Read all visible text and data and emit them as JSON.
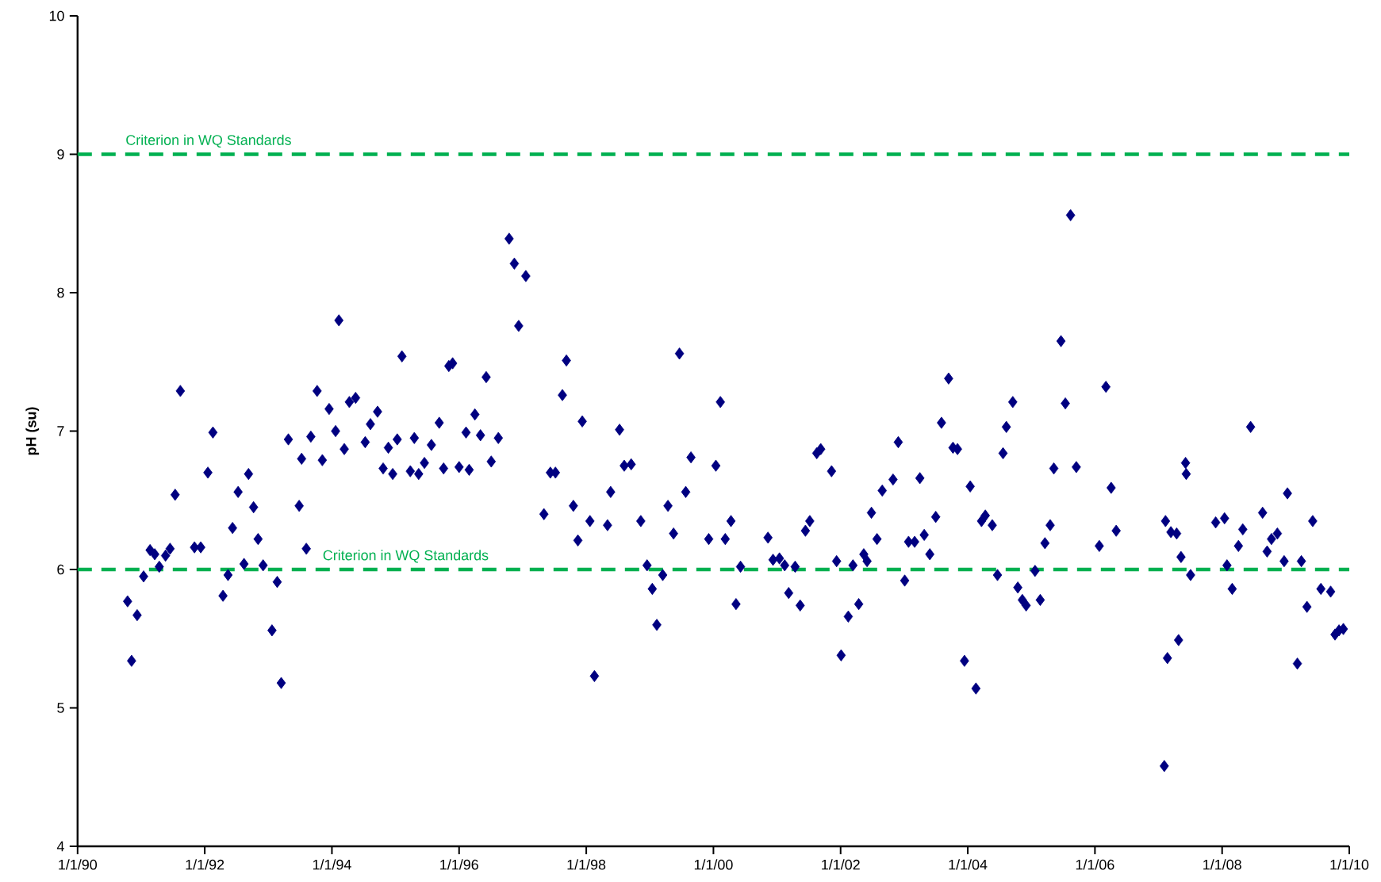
{
  "chart_data": {
    "type": "scatter",
    "ylabel": "**pH (su)**",
    "color": "#000080",
    "marker": "diamond",
    "x": [
      "1990-10-15",
      "1990-11-07",
      "1990-12-09",
      "1991-01-15",
      "1991-02-21",
      "1991-03-20",
      "1991-04-15",
      "1991-05-21",
      "1991-06-16",
      "1991-07-15",
      "1991-08-14",
      "1991-11-03",
      "1991-12-09",
      "1992-01-19",
      "1992-02-17",
      "1992-04-15",
      "1992-05-14",
      "1992-06-09",
      "1992-07-11",
      "1992-08-14",
      "1992-09-09",
      "1992-10-08",
      "1992-11-03",
      "1992-12-02",
      "1993-01-22",
      "1993-02-21",
      "1993-03-16",
      "1993-04-26",
      "1993-06-27",
      "1993-07-11",
      "1993-08-07",
      "1993-09-02",
      "1993-10-08",
      "1993-11-07",
      "1993-12-16",
      "1994-01-22",
      "1994-02-10",
      "1994-03-13",
      "1994-04-11",
      "1994-05-17",
      "1994-07-11",
      "1994-08-10",
      "1994-09-20",
      "1994-10-22",
      "1994-11-21",
      "1994-12-16",
      "1995-01-11",
      "1995-02-07",
      "1995-03-27",
      "1995-04-19",
      "1995-05-14",
      "1995-06-16",
      "1995-07-26",
      "1995-09-09",
      "1995-10-04",
      "1995-11-03",
      "1995-11-25",
      "1996-01-01",
      "1996-02-10",
      "1996-02-28",
      "1996-04-01",
      "1996-05-03",
      "1996-06-05",
      "1996-07-04",
      "1996-08-14",
      "1996-10-15",
      "1996-11-14",
      "1996-12-09",
      "1997-01-19",
      "1997-05-03",
      "1997-06-09",
      "1997-07-08",
      "1997-08-17",
      "1997-09-09",
      "1997-10-19",
      "1997-11-14",
      "1997-12-09",
      "1998-01-22",
      "1998-02-17",
      "1998-05-03",
      "1998-05-21",
      "1998-07-11",
      "1998-08-07",
      "1998-09-16",
      "1998-11-10",
      "1998-12-16",
      "1999-01-15",
      "1999-02-10",
      "1999-03-16",
      "1999-04-15",
      "1999-05-17",
      "1999-06-20",
      "1999-07-26",
      "1999-08-25",
      "1999-12-05",
      "2000-01-15",
      "2000-02-10",
      "2000-03-09",
      "2000-04-11",
      "2000-05-10",
      "2000-06-05",
      "2000-11-10",
      "2000-12-09",
      "2001-01-15",
      "2001-02-14",
      "2001-03-09",
      "2001-04-15",
      "2001-05-14",
      "2001-06-13",
      "2001-07-08",
      "2001-08-17",
      "2001-09-09",
      "2001-11-10",
      "2001-12-09",
      "2002-01-04",
      "2002-02-14",
      "2002-03-13",
      "2002-04-15",
      "2002-05-14",
      "2002-06-02",
      "2002-06-27",
      "2002-07-29",
      "2002-08-28",
      "2002-10-29",
      "2002-11-28",
      "2003-01-04",
      "2003-01-26",
      "2003-03-02",
      "2003-04-01",
      "2003-04-26",
      "2003-05-28",
      "2003-07-01",
      "2003-08-03",
      "2003-09-13",
      "2003-10-08",
      "2003-11-03",
      "2003-12-13",
      "2004-01-15",
      "2004-02-17",
      "2004-03-20",
      "2004-04-11",
      "2004-05-21",
      "2004-06-20",
      "2004-07-22",
      "2004-08-10",
      "2004-09-16",
      "2004-10-15",
      "2004-11-10",
      "2004-12-02",
      "2005-01-22",
      "2005-02-21",
      "2005-03-20",
      "2005-04-19",
      "2005-05-10",
      "2005-06-20",
      "2005-07-15",
      "2005-08-14",
      "2005-09-16",
      "2006-01-26",
      "2006-03-05",
      "2006-04-04",
      "2006-05-03",
      "2007-02-03",
      "2007-02-10",
      "2007-02-21",
      "2007-03-13",
      "2007-04-15",
      "2007-04-26",
      "2007-05-10",
      "2007-06-05",
      "2007-06-09",
      "2007-07-04",
      "2007-11-25",
      "2008-01-15",
      "2008-01-29",
      "2008-02-28",
      "2008-04-04",
      "2008-04-29",
      "2008-06-13",
      "2008-08-21",
      "2008-09-16",
      "2008-10-11",
      "2008-11-14",
      "2008-12-23",
      "2009-01-11",
      "2009-03-09",
      "2009-04-01",
      "2009-05-03",
      "2009-06-05",
      "2009-07-22",
      "2009-09-16",
      "2009-10-11",
      "2009-11-03",
      "2009-11-28"
    ],
    "values": [
      5.77,
      5.34,
      5.67,
      5.95,
      6.14,
      6.11,
      6.02,
      6.1,
      6.15,
      6.54,
      7.29,
      6.16,
      6.16,
      6.7,
      6.99,
      5.81,
      5.96,
      6.3,
      6.56,
      6.04,
      6.69,
      6.45,
      6.22,
      6.03,
      5.56,
      5.91,
      5.18,
      6.94,
      6.46,
      6.8,
      6.15,
      6.96,
      7.29,
      6.79,
      7.16,
      7.0,
      7.8,
      6.87,
      7.21,
      7.24,
      6.92,
      7.05,
      7.14,
      6.73,
      6.88,
      6.69,
      6.94,
      7.54,
      6.71,
      6.95,
      6.69,
      6.77,
      6.9,
      7.06,
      6.73,
      7.47,
      7.49,
      6.74,
      6.99,
      6.72,
      7.12,
      6.97,
      7.39,
      6.78,
      6.95,
      8.39,
      8.21,
      7.76,
      8.12,
      6.4,
      6.7,
      6.7,
      7.26,
      7.51,
      6.46,
      6.21,
      7.07,
      6.35,
      5.23,
      6.32,
      6.56,
      7.01,
      6.75,
      6.76,
      6.35,
      6.03,
      5.86,
      5.6,
      5.96,
      6.46,
      6.26,
      7.56,
      6.56,
      6.81,
      6.22,
      6.75,
      7.21,
      6.22,
      6.35,
      5.75,
      6.02,
      6.23,
      6.07,
      6.08,
      6.03,
      5.83,
      6.02,
      5.74,
      6.28,
      6.35,
      6.84,
      6.87,
      6.71,
      6.06,
      5.38,
      5.66,
      6.03,
      5.75,
      6.11,
      6.06,
      6.41,
      6.22,
      6.57,
      6.65,
      6.92,
      5.92,
      6.2,
      6.2,
      6.66,
      6.25,
      6.11,
      6.38,
      7.06,
      7.38,
      6.88,
      6.87,
      5.34,
      6.6,
      5.14,
      6.35,
      6.39,
      6.32,
      5.96,
      6.84,
      7.03,
      7.21,
      5.87,
      5.78,
      5.74,
      5.99,
      5.78,
      6.19,
      6.32,
      6.73,
      7.65,
      7.2,
      8.56,
      6.74,
      6.17,
      7.32,
      6.59,
      6.28,
      4.58,
      6.35,
      5.36,
      6.27,
      6.26,
      5.49,
      6.09,
      6.77,
      6.69,
      5.96,
      6.34,
      6.37,
      6.03,
      5.86,
      6.17,
      6.29,
      7.03,
      6.41,
      6.13,
      6.22,
      6.26,
      6.06,
      6.55,
      5.32,
      6.06,
      5.73,
      6.35,
      5.86,
      5.84,
      5.53,
      5.56,
      5.57
    ],
    "xlim": [
      "1990-01-01",
      "2010-01-01"
    ],
    "xticks": [
      {
        "value": "1990-01-01",
        "label": "1/1/90"
      },
      {
        "value": "1992-01-01",
        "label": "1/1/92"
      },
      {
        "value": "1994-01-01",
        "label": "1/1/94"
      },
      {
        "value": "1996-01-01",
        "label": "1/1/96"
      },
      {
        "value": "1998-01-01",
        "label": "1/1/98"
      },
      {
        "value": "2000-01-01",
        "label": "1/1/00"
      },
      {
        "value": "2002-01-01",
        "label": "1/1/02"
      },
      {
        "value": "2004-01-01",
        "label": "1/1/04"
      },
      {
        "value": "2006-01-01",
        "label": "1/1/06"
      },
      {
        "value": "2008-01-01",
        "label": "1/1/08"
      },
      {
        "value": "2010-01-01",
        "label": "1/1/10"
      }
    ],
    "ylim": [
      4,
      10
    ],
    "yticks": [
      4,
      5,
      6,
      7,
      8,
      9,
      10
    ],
    "ref_lines": [
      {
        "axis": "y",
        "value": 9,
        "label": "Criterion in WQ Standards",
        "color": "#00b050",
        "line_style": "dashed"
      },
      {
        "axis": "y",
        "value": 6,
        "label": "Criterion in WQ Standards",
        "color": "#00b050",
        "line_style": "dashed"
      }
    ]
  }
}
